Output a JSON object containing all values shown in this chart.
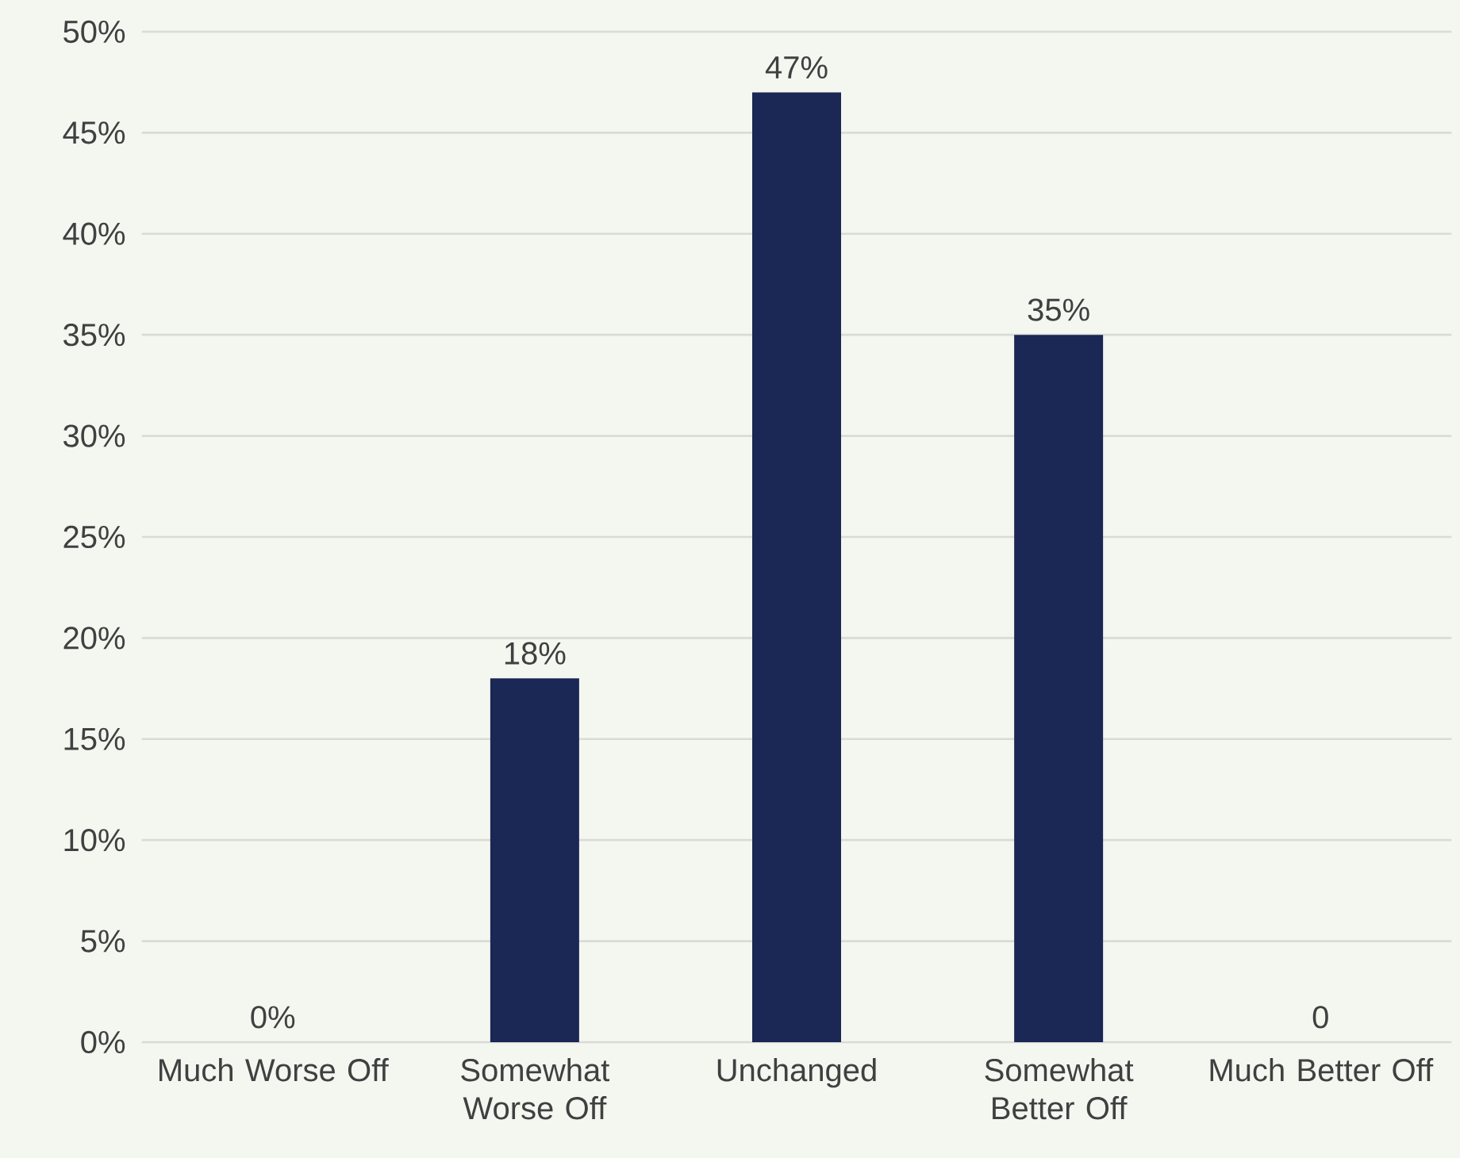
{
  "chart_data": {
    "type": "bar",
    "categories": [
      "Much Worse Off",
      "Somewhat Worse Off",
      "Unchanged",
      "Somewhat Better Off",
      "Much Better Off"
    ],
    "values": [
      0,
      18,
      47,
      35,
      0
    ],
    "value_labels": [
      "0%",
      "18%",
      "47%",
      "35%",
      "0"
    ],
    "color": "#1b2754",
    "ylim": [
      0,
      50
    ],
    "yticks": [
      {
        "value": 0,
        "label": "0%"
      },
      {
        "value": 5,
        "label": "5%"
      },
      {
        "value": 10,
        "label": "10%"
      },
      {
        "value": 15,
        "label": "15%"
      },
      {
        "value": 20,
        "label": "20%"
      },
      {
        "value": 25,
        "label": "25%"
      },
      {
        "value": 30,
        "label": "30%"
      },
      {
        "value": 35,
        "label": "35%"
      },
      {
        "value": 40,
        "label": "40%"
      },
      {
        "value": 45,
        "label": "45%"
      },
      {
        "value": 50,
        "label": "50%"
      }
    ],
    "grid": "y"
  }
}
